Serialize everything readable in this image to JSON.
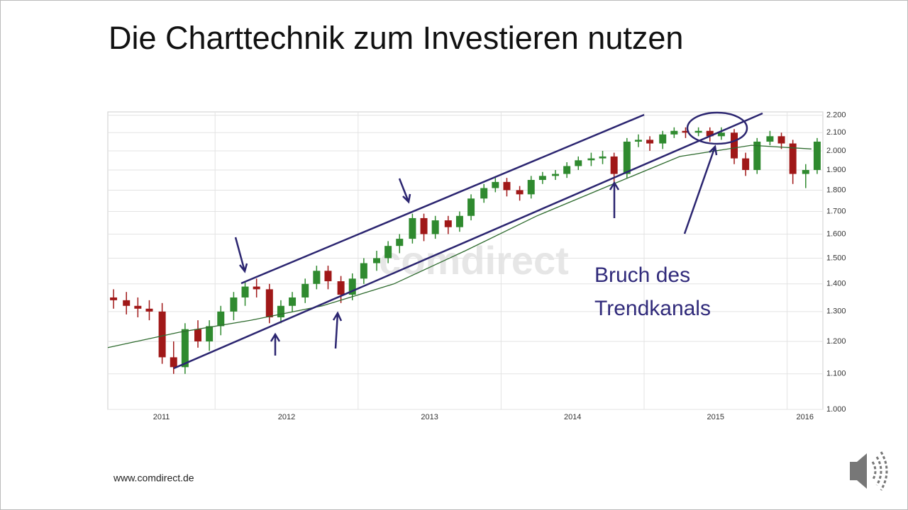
{
  "title": "Die Charttechnik zum Investieren nutzen",
  "footer": "www.comdirect.de",
  "chart_data": {
    "type": "candlestick",
    "watermark": "comdirect",
    "annotation": [
      "Bruch des",
      "Trendkanals"
    ],
    "x": [
      2011.29,
      2011.38,
      2011.46,
      2011.54,
      2011.63,
      2011.71,
      2011.79,
      2011.88,
      2011.96,
      2012.04,
      2012.13,
      2012.21,
      2012.29,
      2012.38,
      2012.46,
      2012.54,
      2012.63,
      2012.71,
      2012.79,
      2012.88,
      2012.96,
      2013.04,
      2013.13,
      2013.21,
      2013.29,
      2013.38,
      2013.46,
      2013.54,
      2013.63,
      2013.71,
      2013.79,
      2013.88,
      2013.96,
      2014.04,
      2014.13,
      2014.21,
      2014.29,
      2014.38,
      2014.46,
      2014.54,
      2014.63,
      2014.71,
      2014.79,
      2014.88,
      2014.96,
      2015.04,
      2015.13,
      2015.21,
      2015.29,
      2015.38,
      2015.46,
      2015.54,
      2015.63,
      2015.71,
      2015.79,
      2015.88,
      2015.96,
      2016.04,
      2016.13,
      2016.21
    ],
    "open": [
      1350,
      1340,
      1320,
      1310,
      1300,
      1150,
      1120,
      1240,
      1200,
      1250,
      1300,
      1350,
      1390,
      1380,
      1280,
      1320,
      1350,
      1400,
      1450,
      1410,
      1360,
      1420,
      1480,
      1500,
      1550,
      1580,
      1670,
      1600,
      1660,
      1630,
      1680,
      1760,
      1810,
      1840,
      1800,
      1780,
      1850,
      1870,
      1880,
      1920,
      1950,
      1960,
      1970,
      1880,
      2050,
      2060,
      2040,
      2090,
      2110,
      2100,
      2110,
      2080,
      2100,
      1960,
      1900,
      2050,
      2080,
      2040,
      1880,
      1900
    ],
    "high": [
      1380,
      1370,
      1350,
      1340,
      1330,
      1200,
      1260,
      1270,
      1270,
      1320,
      1370,
      1410,
      1420,
      1400,
      1340,
      1370,
      1420,
      1470,
      1470,
      1430,
      1440,
      1500,
      1530,
      1570,
      1600,
      1690,
      1690,
      1680,
      1680,
      1700,
      1780,
      1830,
      1860,
      1860,
      1820,
      1870,
      1890,
      1900,
      1940,
      1970,
      1990,
      2000,
      1990,
      2070,
      2090,
      2080,
      2110,
      2130,
      2130,
      2130,
      2130,
      2130,
      2120,
      1990,
      2070,
      2110,
      2100,
      2060,
      1930,
      2070
    ],
    "low": [
      1310,
      1290,
      1280,
      1270,
      1130,
      1100,
      1100,
      1180,
      1170,
      1220,
      1270,
      1320,
      1350,
      1260,
      1260,
      1300,
      1330,
      1380,
      1380,
      1330,
      1340,
      1400,
      1450,
      1480,
      1520,
      1560,
      1570,
      1580,
      1600,
      1610,
      1660,
      1740,
      1790,
      1770,
      1750,
      1760,
      1830,
      1850,
      1860,
      1900,
      1920,
      1930,
      1820,
      1860,
      2020,
      2000,
      2010,
      2070,
      2070,
      2080,
      2050,
      2060,
      1930,
      1870,
      1880,
      2030,
      2010,
      1830,
      1810,
      1880
    ],
    "close": [
      1340,
      1320,
      1310,
      1300,
      1150,
      1120,
      1240,
      1200,
      1250,
      1300,
      1350,
      1390,
      1380,
      1280,
      1320,
      1350,
      1400,
      1450,
      1410,
      1360,
      1420,
      1480,
      1500,
      1550,
      1580,
      1670,
      1600,
      1660,
      1630,
      1680,
      1760,
      1810,
      1840,
      1800,
      1780,
      1850,
      1870,
      1880,
      1920,
      1950,
      1960,
      1970,
      1880,
      2050,
      2060,
      2040,
      2090,
      2110,
      2100,
      2110,
      2080,
      2100,
      1960,
      1900,
      2050,
      2080,
      2040,
      1880,
      1900,
      2050
    ],
    "up_color": "#2f8a2f",
    "down_color": "#a01818",
    "line": {
      "color": "#2f6b2f",
      "x": [
        2011.25,
        2011.75,
        2012.25,
        2012.75,
        2013.25,
        2013.75,
        2014.25,
        2014.75,
        2015.25,
        2015.75,
        2016.17
      ],
      "values": [
        1180,
        1230,
        1270,
        1320,
        1400,
        1530,
        1680,
        1820,
        1970,
        2030,
        2010
      ]
    },
    "log_y": true,
    "grid": true,
    "xlim": [
      2011.25,
      2016.25
    ],
    "xticks": [
      2011,
      2012,
      2013,
      2014,
      2015,
      2016
    ],
    "ylim": [
      1000,
      2220
    ],
    "yticks": [
      {
        "value": 1000,
        "label": "1.000"
      },
      {
        "value": 1100,
        "label": "1.100"
      },
      {
        "value": 1200,
        "label": "1.200"
      },
      {
        "value": 1300,
        "label": "1.300"
      },
      {
        "value": 1400,
        "label": "1.400"
      },
      {
        "value": 1500,
        "label": "1.500"
      },
      {
        "value": 1600,
        "label": "1.600"
      },
      {
        "value": 1700,
        "label": "1.700"
      },
      {
        "value": 1800,
        "label": "1.800"
      },
      {
        "value": 1900,
        "label": "1.900"
      },
      {
        "value": 2000,
        "label": "2.000"
      },
      {
        "value": 2100,
        "label": "2.100"
      },
      {
        "value": 2200,
        "label": "2.200"
      }
    ]
  }
}
